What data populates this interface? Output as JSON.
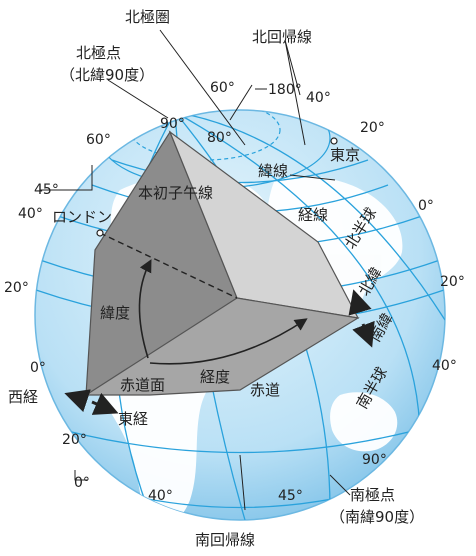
{
  "colors": {
    "ocean": "#bfe3f6",
    "ocean_edge": "#7fc2e8",
    "grid": "#2aa2dc",
    "land": "#ffffff",
    "cut_dark": "#8c8c8c",
    "cut_mid": "#a6a6a6",
    "cut_light": "#d4d4d4",
    "ink": "#222222"
  },
  "labels": {
    "north_polar_circle": "北極圏",
    "north_pole_line1": "北極点",
    "north_pole_line2": "（北緯90度）",
    "tropic_cancer": "北回帰線",
    "tropic_capricorn": "南回帰線",
    "south_pole_line1": "南極点",
    "south_pole_line2": "（南緯90度）",
    "latitude_line": "緯線",
    "longitude_line": "経線",
    "prime_meridian": "本初子午線",
    "london": "ロンドン",
    "tokyo": "東京",
    "latitude": "緯度",
    "longitude": "経度",
    "equator_plane": "赤道面",
    "equator": "赤道",
    "northern_hemisphere": "北半球",
    "southern_hemisphere": "南半球",
    "north_latitude": "北緯",
    "south_latitude": "南緯",
    "west_longitude": "西経",
    "east_longitude": "東経"
  },
  "degrees": {
    "top_90": "90°",
    "top_60": "60°",
    "top_180": "180°",
    "top_80": "80°",
    "top_40": "40°",
    "right_20_top": "20°",
    "left_60": "60°",
    "left_45": "45°",
    "left_40": "40°",
    "right_0": "0°",
    "left_20": "20°",
    "right_20": "20°",
    "left_0": "0°",
    "right_40": "40°",
    "left_20_low": "20°",
    "bottom_90": "90°",
    "bottom_0": "0°",
    "bottom_40": "40°",
    "bottom_45": "45°"
  }
}
